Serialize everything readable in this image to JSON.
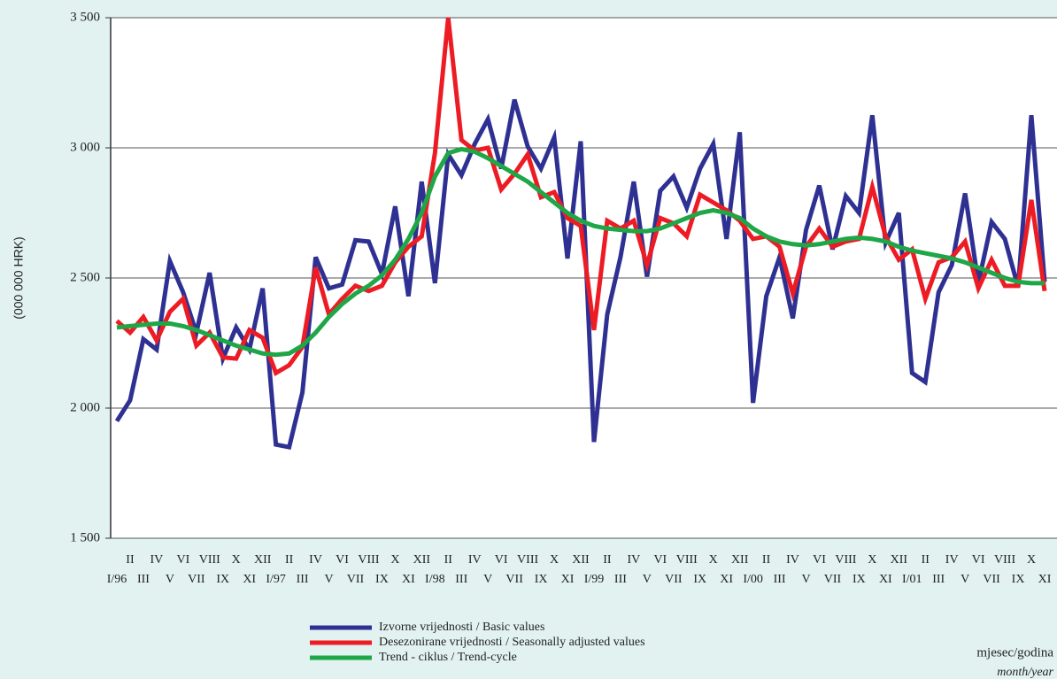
{
  "chart_data": {
    "type": "line",
    "y_label": "(000 000 HRK)",
    "x_label": "mjesec/godina",
    "x_label_en": "month/year",
    "categories": [
      "I/96",
      "II",
      "III",
      "IV",
      "V",
      "VI",
      "VII",
      "VIII",
      "IX",
      "X",
      "XI",
      "XII",
      "I/97",
      "II",
      "III",
      "IV",
      "V",
      "VI",
      "VII",
      "VIII",
      "IX",
      "X",
      "XI",
      "XII",
      "I/98",
      "II",
      "III",
      "IV",
      "V",
      "VI",
      "VII",
      "VIII",
      "IX",
      "X",
      "XI",
      "XII",
      "I/99",
      "II",
      "III",
      "IV",
      "V",
      "VI",
      "VII",
      "VIII",
      "IX",
      "X",
      "XI",
      "XII",
      "I/00",
      "II",
      "III",
      "IV",
      "V",
      "VI",
      "VII",
      "VIII",
      "IX",
      "X",
      "XI",
      "XII",
      "I/01",
      "II",
      "III",
      "IV",
      "V",
      "VI",
      "VII",
      "VIII",
      "IX",
      "X",
      "XI"
    ],
    "series": [
      {
        "name": "Izvorne vrijednosti / Basic values",
        "color": "#2e3192",
        "values": [
          1950,
          2030,
          2265,
          2225,
          2565,
          2445,
          2290,
          2520,
          2190,
          2310,
          2225,
          2460,
          1860,
          1850,
          2060,
          2580,
          2460,
          2475,
          2645,
          2640,
          2515,
          2775,
          2430,
          2870,
          2480,
          2975,
          2895,
          3015,
          3110,
          2920,
          3185,
          3005,
          2920,
          3040,
          2575,
          3025,
          1870,
          2360,
          2580,
          2870,
          2505,
          2835,
          2890,
          2770,
          2920,
          3015,
          2650,
          3060,
          2020,
          2430,
          2580,
          2345,
          2685,
          2855,
          2610,
          2815,
          2750,
          3125,
          2635,
          2750,
          2135,
          2100,
          2445,
          2550,
          2825,
          2480,
          2715,
          2650,
          2465,
          3125,
          2485
        ]
      },
      {
        "name": "Desezonirane vrijednosti / Seasonally adjusted values",
        "color": "#ed1c24",
        "values": [
          2335,
          2290,
          2350,
          2260,
          2370,
          2420,
          2240,
          2290,
          2195,
          2190,
          2300,
          2270,
          2135,
          2165,
          2235,
          2540,
          2360,
          2420,
          2470,
          2450,
          2470,
          2560,
          2620,
          2660,
          2980,
          3500,
          3030,
          2990,
          3000,
          2840,
          2900,
          2975,
          2810,
          2830,
          2730,
          2700,
          2300,
          2720,
          2690,
          2720,
          2550,
          2730,
          2710,
          2660,
          2820,
          2790,
          2760,
          2720,
          2650,
          2660,
          2620,
          2440,
          2620,
          2690,
          2620,
          2640,
          2650,
          2850,
          2660,
          2570,
          2610,
          2420,
          2560,
          2580,
          2640,
          2460,
          2570,
          2470,
          2470,
          2800,
          2450
        ]
      },
      {
        "name": "Trend - ciklus / Trend-cycle",
        "color": "#1fa647",
        "values": [
          2310,
          2315,
          2320,
          2325,
          2325,
          2315,
          2300,
          2280,
          2260,
          2240,
          2225,
          2210,
          2205,
          2210,
          2240,
          2290,
          2350,
          2400,
          2440,
          2470,
          2510,
          2570,
          2650,
          2750,
          2890,
          2980,
          2995,
          2985,
          2960,
          2930,
          2900,
          2870,
          2830,
          2790,
          2750,
          2720,
          2700,
          2690,
          2685,
          2680,
          2680,
          2690,
          2710,
          2730,
          2750,
          2760,
          2750,
          2730,
          2690,
          2660,
          2640,
          2630,
          2625,
          2630,
          2640,
          2650,
          2655,
          2650,
          2640,
          2620,
          2605,
          2595,
          2585,
          2575,
          2560,
          2540,
          2520,
          2500,
          2485,
          2480,
          2480
        ]
      }
    ],
    "ylim": [
      1500,
      3500
    ],
    "yticks": [
      {
        "value": 1500,
        "label": "1 500"
      },
      {
        "value": 2000,
        "label": "2 000"
      },
      {
        "value": 2500,
        "label": "2 500"
      },
      {
        "value": 3000,
        "label": "3 000"
      },
      {
        "value": 3500,
        "label": "3 500"
      }
    ],
    "grid": true
  }
}
